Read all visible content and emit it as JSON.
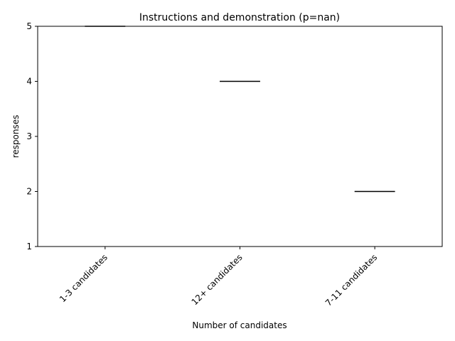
{
  "chart_data": {
    "type": "box",
    "title": "Instructions and demonstration (p=nan)",
    "xlabel": "Number of candidates",
    "ylabel": "responses",
    "categories": [
      "1-3 candidates",
      "12+ candidates",
      "7-11 candidates"
    ],
    "values": [
      5,
      4,
      2
    ],
    "ylim": [
      1,
      5
    ],
    "yticks": [
      1,
      2,
      3,
      4,
      5
    ],
    "x_tick_rotation_deg": 45,
    "grid": false,
    "legend": "none",
    "colors": {
      "line": "#000000",
      "median": "#000000"
    }
  }
}
